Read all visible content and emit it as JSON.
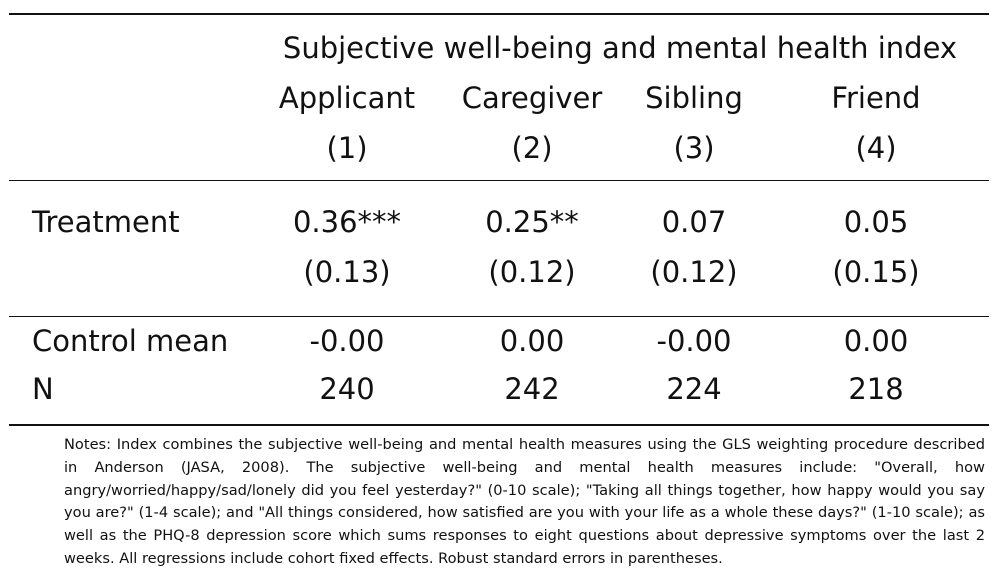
{
  "header": {
    "group_title": "Subjective well-being and mental health index",
    "columns": [
      {
        "name": "Applicant",
        "number": "(1)"
      },
      {
        "name": "Caregiver",
        "number": "(2)"
      },
      {
        "name": "Sibling",
        "number": "(3)"
      },
      {
        "name": "Friend",
        "number": "(4)"
      }
    ]
  },
  "rows": {
    "treatment": {
      "label": "Treatment",
      "coefs": [
        "0.36***",
        "0.25**",
        "0.07",
        "0.05"
      ],
      "ses": [
        "(0.13)",
        "(0.12)",
        "(0.12)",
        "(0.15)"
      ]
    },
    "control_mean": {
      "label": "Control mean",
      "values": [
        "-0.00",
        "0.00",
        "-0.00",
        "0.00"
      ]
    },
    "n": {
      "label": "N",
      "values": [
        "240",
        "242",
        "224",
        "218"
      ]
    }
  },
  "notes": "Notes: Index combines the subjective well-being and mental health measures using the GLS weighting procedure described in Anderson (JASA, 2008). The subjective well-being and mental health measures include: \"Overall, how angry/worried/happy/sad/lonely did you feel yesterday?\" (0-10 scale); \"Taking all things together, how happy would you say you are?\" (1-4 scale); and \"All things considered, how satisfied are you with your life as a whole these days?\" (1-10 scale); as well as the PHQ-8 depression score which sums responses to eight questions about depressive symptoms over the last 2 weeks. All regressions include cohort fixed effects. Robust standard errors in parentheses."
}
